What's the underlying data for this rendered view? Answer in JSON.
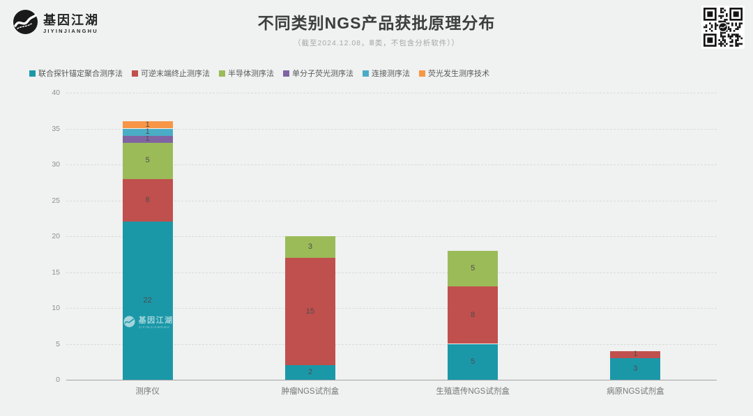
{
  "window": {
    "background": "#f0f1f1"
  },
  "header": {
    "logo": {
      "brand_cn": "基因江湖",
      "brand_en": "JIYINJIANGHU"
    },
    "title": "不同类别NGS产品获批原理分布",
    "subtitle": "（截至2024.12.08，Ⅲ类，不包含分析软件））"
  },
  "icons": {
    "brand_logo": "wave-in-circle-logo",
    "qr": "qr-code"
  },
  "chart_data": {
    "type": "bar",
    "stacked": true,
    "title": "不同类别NGS产品获批原理分布",
    "subtitle": "（截至2024.12.08，Ⅲ类，不包含分析软件））",
    "categories": [
      "测序仪",
      "肿瘤NGS试剂盒",
      "生殖遗传NGS试剂盒",
      "病原NGS试剂盒"
    ],
    "series": [
      {
        "name": "联合探针锚定聚合测序法",
        "color": "#1b98a8",
        "values": [
          22,
          2,
          5,
          3
        ]
      },
      {
        "name": "可逆末端终止测序法",
        "color": "#c0504d",
        "values": [
          6,
          15,
          8,
          1
        ]
      },
      {
        "name": "半导体测序法",
        "color": "#9bbb59",
        "values": [
          5,
          3,
          5,
          0
        ]
      },
      {
        "name": "单分子荧光测序法",
        "color": "#8064a2",
        "values": [
          1,
          0,
          0,
          0
        ]
      },
      {
        "name": "连接测序法",
        "color": "#4bacc6",
        "values": [
          1,
          0,
          0,
          0
        ]
      },
      {
        "name": "荧光发生测序技术",
        "color": "#f79646",
        "values": [
          1,
          0,
          0,
          0
        ]
      }
    ],
    "totals": [
      36,
      20,
      18,
      4
    ],
    "ylim": [
      0,
      40
    ],
    "yticks": [
      0,
      5,
      10,
      15,
      20,
      25,
      30,
      35,
      40
    ],
    "grid": "horizontal-dashed",
    "legend_position": "top-left",
    "value_labels": "inside-center"
  },
  "watermark": {
    "brand_cn": "基因江湖",
    "brand_en": "JIYINJIANGHU"
  }
}
